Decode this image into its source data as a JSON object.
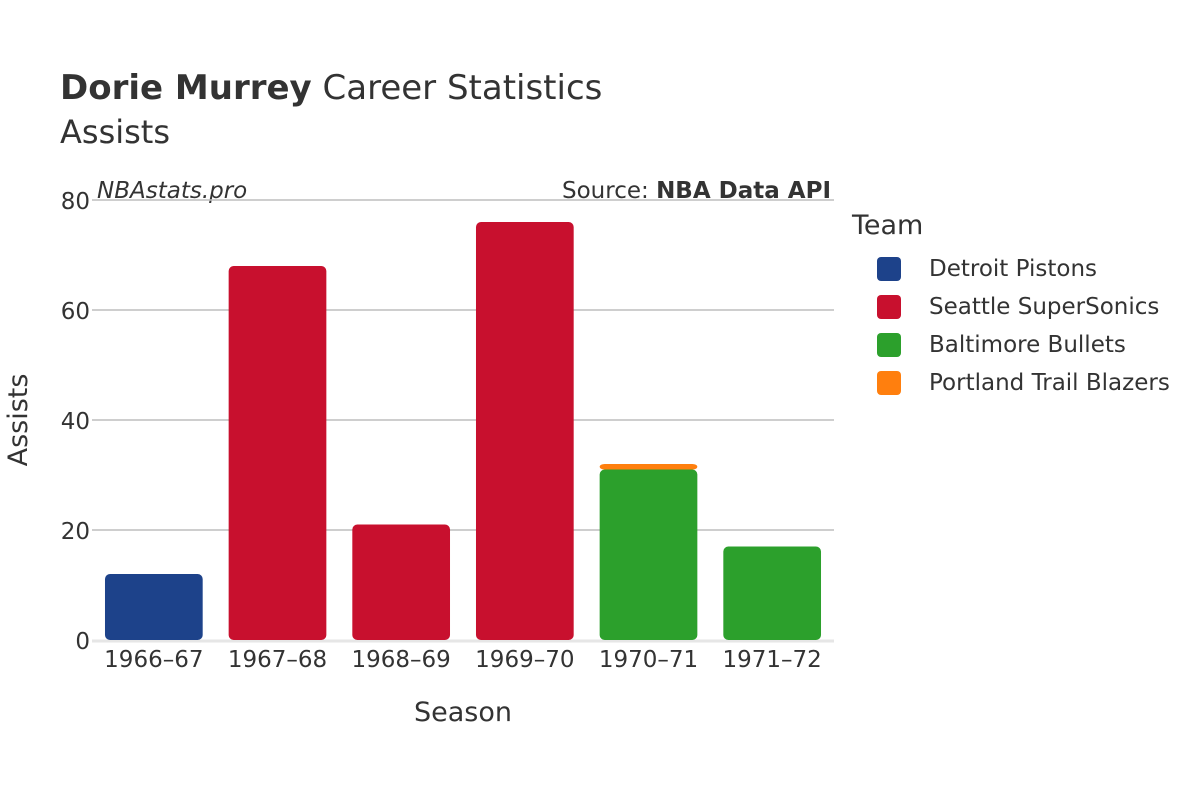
{
  "header": {
    "title_bold": "Dorie Murrey",
    "title_rest": " Career Statistics",
    "subtitle": "Assists"
  },
  "watermark": "NBAstats.pro",
  "source": {
    "prefix": "Source: ",
    "name": "NBA Data API"
  },
  "legend": {
    "title": "Team",
    "items": [
      {
        "label": "Detroit Pistons",
        "color": "#1d428a"
      },
      {
        "label": "Seattle SuperSonics",
        "color": "#c8102e"
      },
      {
        "label": "Baltimore Bullets",
        "color": "#2ca02c"
      },
      {
        "label": "Portland Trail Blazers",
        "color": "#ff7f0e"
      }
    ]
  },
  "chart_data": {
    "type": "bar",
    "stacked": true,
    "title": "Dorie Murrey Career Statistics",
    "subtitle": "Assists",
    "xlabel": "Season",
    "ylabel": "Assists",
    "ylim": [
      0,
      80
    ],
    "yticks": [
      0,
      20,
      40,
      60,
      80
    ],
    "grid": true,
    "legend_position": "right",
    "categories": [
      "1966–67",
      "1967–68",
      "1968–69",
      "1969–70",
      "1970–71",
      "1971–72"
    ],
    "series": [
      {
        "name": "Detroit Pistons",
        "color": "#1d428a",
        "values": [
          12,
          0,
          0,
          0,
          0,
          0
        ]
      },
      {
        "name": "Seattle SuperSonics",
        "color": "#c8102e",
        "values": [
          0,
          68,
          21,
          76,
          0,
          0
        ]
      },
      {
        "name": "Baltimore Bullets",
        "color": "#2ca02c",
        "values": [
          0,
          0,
          0,
          0,
          31,
          17
        ]
      },
      {
        "name": "Portland Trail Blazers",
        "color": "#ff7f0e",
        "values": [
          0,
          0,
          0,
          0,
          1,
          0
        ]
      }
    ]
  }
}
